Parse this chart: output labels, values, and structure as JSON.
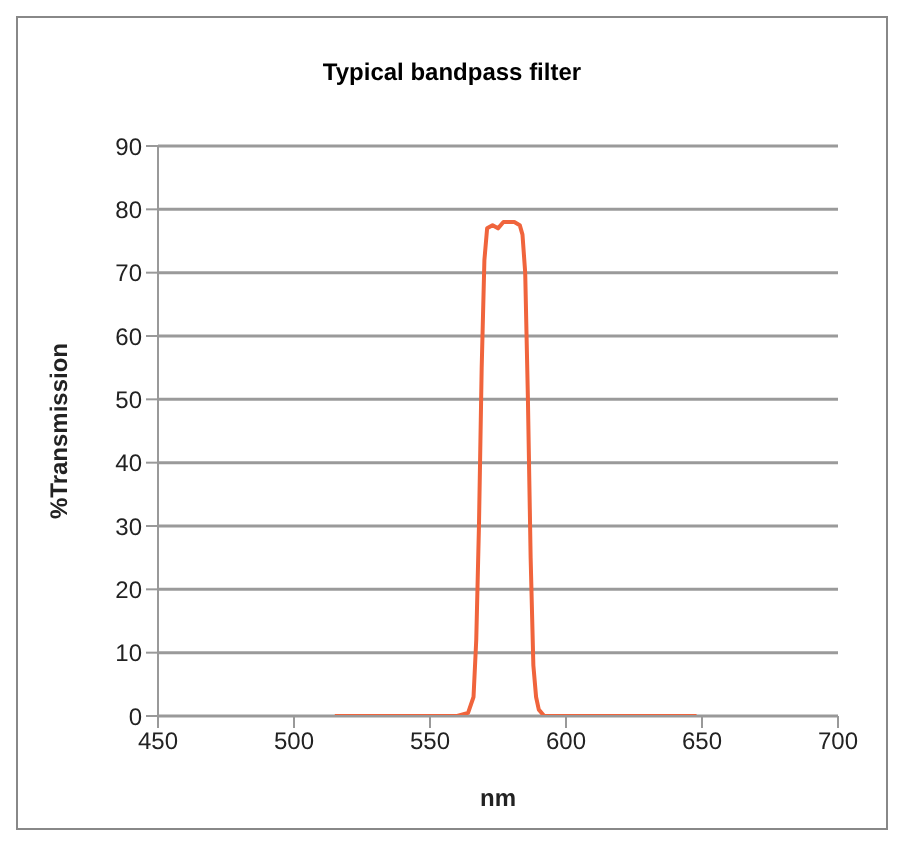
{
  "chart_data": {
    "type": "line",
    "title": "Typical bandpass filter",
    "xlabel": "nm",
    "ylabel": "%Transmission",
    "x": [
      515,
      540,
      560,
      564,
      566,
      567,
      568,
      569,
      570,
      571,
      573,
      575,
      577,
      579,
      581,
      583,
      584,
      585,
      586,
      587,
      588,
      589,
      590,
      592,
      600,
      620,
      648
    ],
    "series": [
      {
        "color": "#f0643c",
        "values": [
          0,
          0,
          0,
          0.5,
          3,
          12,
          30,
          55,
          72,
          77,
          77.5,
          77,
          78,
          78,
          78,
          77.5,
          76,
          70,
          50,
          25,
          8,
          3,
          1,
          0,
          0,
          0,
          0
        ]
      }
    ],
    "xlim": [
      450,
      700
    ],
    "xticks": [
      450,
      500,
      550,
      600,
      650,
      700
    ],
    "ylim": [
      0,
      90
    ],
    "yticks": [
      0,
      10,
      20,
      30,
      40,
      50,
      60,
      70,
      80,
      90
    ],
    "grid": "y",
    "legend": false,
    "marker": "none",
    "line_style": "solid"
  }
}
